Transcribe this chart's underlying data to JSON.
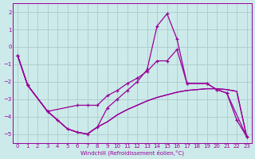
{
  "background_color": "#cceaea",
  "grid_color": "#aacccc",
  "line_color": "#990099",
  "xlabel": "Windchill (Refroidissement éolien,°C)",
  "ylim": [
    -5.5,
    2.5
  ],
  "xlim": [
    -0.5,
    23.5
  ],
  "yticks": [
    -5,
    -4,
    -3,
    -2,
    -1,
    0,
    1,
    2
  ],
  "xticks": [
    0,
    1,
    2,
    3,
    4,
    5,
    6,
    7,
    8,
    9,
    10,
    11,
    12,
    13,
    14,
    15,
    16,
    17,
    18,
    19,
    20,
    21,
    22,
    23
  ],
  "line1_x": [
    0,
    1,
    3,
    6,
    7,
    8,
    9,
    10,
    11,
    12,
    13,
    14,
    15,
    16,
    17,
    19,
    20,
    21,
    23
  ],
  "line1_y": [
    -0.5,
    -2.2,
    -3.7,
    -3.35,
    -3.35,
    -3.35,
    -2.8,
    -2.5,
    -2.1,
    -1.8,
    -1.4,
    -0.8,
    -0.8,
    -0.15,
    -2.1,
    -2.1,
    -2.45,
    -2.65,
    -5.15
  ],
  "line2_x": [
    0,
    1,
    3,
    4,
    5,
    6,
    7,
    8,
    9,
    10,
    11,
    12,
    13,
    14,
    15,
    16,
    17,
    19,
    20,
    21,
    22,
    23
  ],
  "line2_y": [
    -0.5,
    -2.2,
    -3.7,
    -4.2,
    -4.7,
    -4.9,
    -5.0,
    -4.6,
    -3.5,
    -3.0,
    -2.5,
    -2.0,
    -1.3,
    1.2,
    1.9,
    0.45,
    -2.1,
    -2.1,
    -2.45,
    -2.65,
    -4.2,
    -5.15
  ],
  "line3_x": [
    0,
    1,
    3,
    4,
    5,
    6,
    7,
    8,
    9,
    10,
    11,
    12,
    13,
    14,
    15,
    16,
    17,
    18,
    19,
    20,
    21,
    22,
    23
  ],
  "line3_y": [
    -0.5,
    -2.2,
    -3.7,
    -4.2,
    -4.7,
    -4.9,
    -5.0,
    -4.6,
    -4.3,
    -3.9,
    -3.6,
    -3.35,
    -3.1,
    -2.9,
    -2.75,
    -2.6,
    -2.5,
    -2.45,
    -2.4,
    -2.4,
    -2.45,
    -2.55,
    -5.15
  ],
  "line4_x": [
    0,
    1,
    3,
    4,
    5,
    6,
    7,
    8,
    9,
    10,
    11,
    12,
    13,
    14,
    15,
    16,
    17,
    18,
    19,
    20,
    21,
    22,
    23
  ],
  "line4_y": [
    -0.5,
    -2.2,
    -3.7,
    -4.2,
    -4.7,
    -4.9,
    -5.0,
    -4.6,
    -4.3,
    -3.9,
    -3.6,
    -3.35,
    -3.1,
    -2.9,
    -2.75,
    -2.6,
    -2.5,
    -2.45,
    -2.4,
    -2.4,
    -2.45,
    -2.55,
    -5.15
  ]
}
